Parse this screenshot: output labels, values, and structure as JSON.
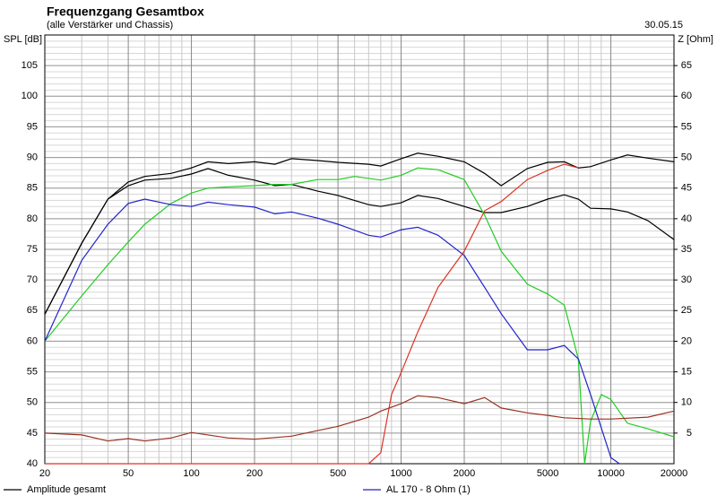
{
  "chart_data": {
    "type": "line",
    "title": "Frequenzgang Gesamtbox",
    "subtitle": "(alle Verstärker und Chassis)",
    "date": "30.05.15",
    "y_label": "SPL [dB]",
    "y2_label": "Z [Ohm]",
    "log_x": true,
    "grid": true,
    "xlim": [
      20,
      20000
    ],
    "xticks": [
      20,
      50,
      100,
      200,
      500,
      1000,
      2000,
      5000,
      10000,
      20000
    ],
    "x_minor_grid": [
      30,
      40,
      60,
      70,
      80,
      90,
      300,
      400,
      600,
      700,
      800,
      900,
      3000,
      4000,
      6000,
      7000,
      8000,
      9000
    ],
    "ylim": [
      40,
      110
    ],
    "yticks": [
      40,
      45,
      50,
      55,
      60,
      65,
      70,
      75,
      80,
      85,
      90,
      95,
      100,
      105
    ],
    "y_minor_grid_step": 1,
    "y2lim": [
      0,
      70
    ],
    "y2ticks": [
      5,
      10,
      15,
      20,
      25,
      30,
      35,
      40,
      45,
      50,
      55,
      60,
      65
    ],
    "series": [
      {
        "name": "Amplitude gesamt",
        "color": "#000000",
        "x": [
          20,
          30,
          40,
          50,
          60,
          80,
          100,
          120,
          150,
          200,
          250,
          300,
          400,
          500,
          700,
          800,
          1000,
          1200,
          1500,
          2000,
          2500,
          3000,
          4000,
          5000,
          6000,
          7000,
          8000,
          10000,
          12000,
          15000,
          20000
        ],
        "values": [
          64.4,
          76,
          83.2,
          86,
          86.9,
          87.4,
          88.3,
          89.3,
          89,
          89.3,
          88.9,
          89.8,
          89.5,
          89.2,
          88.9,
          88.6,
          89.8,
          90.7,
          90.2,
          89.3,
          87.4,
          85.4,
          88.2,
          89.2,
          89.3,
          88.3,
          88.5,
          89.6,
          90.4,
          89.9,
          89.3
        ]
      },
      {
        "color": "#000000",
        "x": [
          20,
          30,
          40,
          50,
          60,
          80,
          100,
          120,
          150,
          200,
          250,
          300,
          400,
          500,
          700,
          800,
          1000,
          1200,
          1500,
          2000,
          2500,
          3000,
          4000,
          5000,
          6000,
          7000,
          8000,
          10000,
          12000,
          15000,
          20000
        ],
        "values": [
          64.4,
          76,
          83.2,
          85.4,
          86.3,
          86.6,
          87.3,
          88.2,
          87.1,
          86.3,
          85.4,
          85.6,
          84.5,
          83.8,
          82.3,
          82,
          82.6,
          83.8,
          83.3,
          82,
          81,
          81,
          82,
          83.2,
          83.9,
          83.2,
          81.7,
          81.6,
          81.1,
          79.7,
          76.6
        ]
      },
      {
        "color": "#22cc22",
        "x": [
          20,
          30,
          40,
          50,
          60,
          80,
          100,
          120,
          150,
          200,
          250,
          300,
          400,
          500,
          600,
          800,
          1000,
          1200,
          1500,
          2000,
          2500,
          3000,
          4000,
          5000,
          6000,
          7000,
          7500,
          8000,
          9000,
          10000,
          12000,
          15000,
          20000
        ],
        "values": [
          60,
          67.4,
          72.5,
          76.2,
          79.1,
          82.5,
          84.2,
          85,
          85.2,
          85.4,
          85.6,
          85.6,
          86.4,
          86.4,
          86.9,
          86.3,
          87.1,
          88.3,
          88,
          86.4,
          80.6,
          74.7,
          69.3,
          67.7,
          65.9,
          57.1,
          40,
          46.9,
          51.3,
          50.5,
          46.6,
          45.7,
          44.4
        ]
      },
      {
        "name": "AL 170 - 8 Ohm (1)",
        "color": "#2222cc",
        "x": [
          20,
          30,
          40,
          50,
          60,
          80,
          100,
          120,
          150,
          200,
          250,
          300,
          400,
          500,
          700,
          800,
          1000,
          1200,
          1500,
          2000,
          2500,
          3000,
          4000,
          5000,
          6000,
          7000,
          8000,
          10000,
          11000
        ],
        "values": [
          60,
          73.2,
          79.1,
          82.5,
          83.2,
          82.3,
          82,
          82.7,
          82.3,
          81.9,
          80.8,
          81.1,
          80.1,
          79.1,
          77.3,
          77,
          78.2,
          78.6,
          77.3,
          74,
          68.8,
          64.5,
          58.6,
          58.6,
          59.3,
          57.1,
          51.3,
          41,
          40
        ]
      },
      {
        "color": "#dd3322",
        "x": [
          20,
          700,
          800,
          900,
          1000,
          1200,
          1500,
          2000,
          2500,
          3000,
          4000,
          5000,
          6000,
          7000
        ],
        "values": [
          40,
          40,
          41.8,
          51.3,
          54.9,
          61.5,
          68.8,
          74.7,
          81.3,
          82.8,
          86.4,
          87.9,
          88.9,
          88.3
        ]
      },
      {
        "color": "#993322",
        "x": [
          20,
          30,
          40,
          50,
          60,
          80,
          100,
          150,
          200,
          300,
          400,
          500,
          700,
          800,
          1000,
          1200,
          1500,
          2000,
          2500,
          3000,
          4000,
          5000,
          6000,
          8000,
          10000,
          15000,
          20000
        ],
        "values": [
          45,
          44.7,
          43.7,
          44.1,
          43.7,
          44.2,
          45.1,
          44.2,
          44,
          44.5,
          45.4,
          46.1,
          47.6,
          48.6,
          49.8,
          51.1,
          50.8,
          49.8,
          50.8,
          49.1,
          48.3,
          47.9,
          47.5,
          47.3,
          47.3,
          47.6,
          48.6
        ]
      }
    ]
  }
}
